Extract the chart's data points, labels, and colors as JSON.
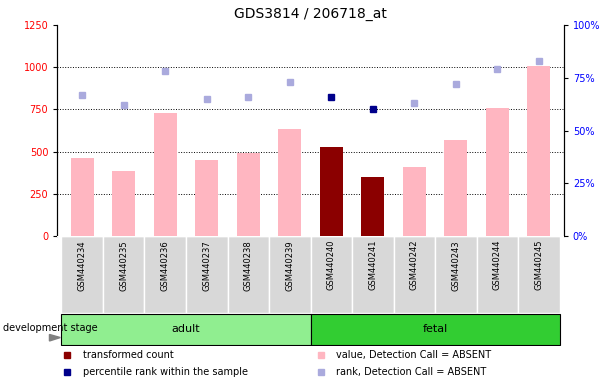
{
  "title": "GDS3814 / 206718_at",
  "samples": [
    "GSM440234",
    "GSM440235",
    "GSM440236",
    "GSM440237",
    "GSM440238",
    "GSM440239",
    "GSM440240",
    "GSM440241",
    "GSM440242",
    "GSM440243",
    "GSM440244",
    "GSM440245"
  ],
  "groups": [
    "adult",
    "adult",
    "adult",
    "adult",
    "adult",
    "adult",
    "fetal",
    "fetal",
    "fetal",
    "fetal",
    "fetal",
    "fetal"
  ],
  "bar_values": [
    460,
    385,
    730,
    450,
    490,
    635,
    525,
    348,
    410,
    570,
    760,
    1010
  ],
  "bar_absent": [
    true,
    true,
    true,
    true,
    true,
    true,
    false,
    false,
    true,
    true,
    true,
    true
  ],
  "rank_values": [
    67,
    62,
    78,
    65,
    66,
    73,
    66,
    60,
    63,
    72,
    79,
    83
  ],
  "rank_absent": [
    true,
    true,
    true,
    true,
    true,
    true,
    false,
    false,
    true,
    true,
    true,
    true
  ],
  "left_ylim": [
    0,
    1250
  ],
  "right_ylim": [
    0,
    100
  ],
  "left_yticks": [
    0,
    250,
    500,
    750,
    1000,
    1250
  ],
  "right_yticks": [
    0,
    25,
    50,
    75,
    100
  ],
  "right_yticklabels": [
    "0%",
    "25%",
    "50%",
    "75%",
    "100%"
  ],
  "bar_color_absent": "#FFB6C1",
  "bar_color_present": "#8B0000",
  "dot_color_absent": "#AAAADD",
  "dot_color_present": "#00008B",
  "adult_color": "#90EE90",
  "fetal_color": "#32CD32",
  "bg_color": "#D8D8D8",
  "title_fontsize": 10,
  "tick_fontsize": 7,
  "annotation_fontsize": 7,
  "legend_fontsize": 7,
  "group_fontsize": 8,
  "dot_size": 5,
  "bar_width": 0.55
}
